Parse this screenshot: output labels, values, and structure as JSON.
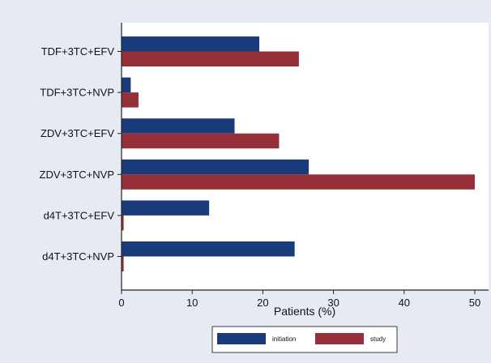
{
  "chart_data": {
    "type": "bar",
    "orientation": "horizontal",
    "categories": [
      "TDF+3TC+EFV",
      "TDF+3TC+NVP",
      "ZDV+3TC+EFV",
      "ZDV+3TC+NVP",
      "d4T+3TC+EFV",
      "d4T+3TC+NVP"
    ],
    "series": [
      {
        "name": "initiation",
        "color": "#1a3b7a",
        "values": [
          19.5,
          1.3,
          16,
          26.5,
          12.4,
          24.5
        ]
      },
      {
        "name": "study",
        "color": "#963038",
        "values": [
          25.1,
          2.4,
          22.3,
          50,
          0.3,
          0.3
        ]
      }
    ],
    "xlabel": "Patients (%)",
    "xlim": [
      0,
      50
    ],
    "xticks": [
      0,
      10,
      20,
      30,
      40,
      50
    ],
    "xtick_labels": [
      "0",
      "10",
      "20",
      "30",
      "40",
      "50"
    ],
    "grid": false,
    "legend_position": "bottom",
    "background_color": "#e6ebf3",
    "plot_background_color": "#ffffff"
  }
}
